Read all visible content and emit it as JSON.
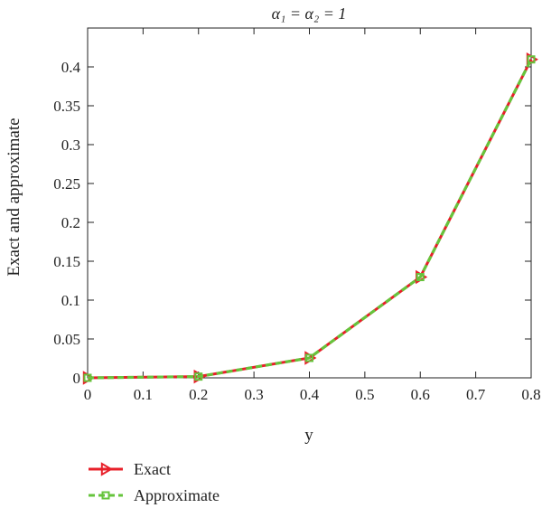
{
  "chart_data": {
    "type": "line",
    "title": "α₁ = α₂ = 1",
    "xlabel": "y",
    "ylabel": "Exact and approximate",
    "xlim": [
      0,
      0.8
    ],
    "ylim": [
      0,
      0.45
    ],
    "xticks": [
      0,
      0.1,
      0.2,
      0.3,
      0.4,
      0.5,
      0.6,
      0.7,
      0.8
    ],
    "xtick_labels": [
      "0",
      "0.1",
      "0.2",
      "0.3",
      "0.4",
      "0.5",
      "0.6",
      "0.7",
      "0.8"
    ],
    "yticks": [
      0,
      0.05,
      0.1,
      0.15,
      0.2,
      0.25,
      0.3,
      0.35,
      0.4
    ],
    "ytick_labels": [
      "0",
      "0.05",
      "0.1",
      "0.15",
      "0.2",
      "0.25",
      "0.3",
      "0.35",
      "0.4"
    ],
    "grid": false,
    "legend_position": "bottom-left, below plot",
    "x": [
      0,
      0.2,
      0.4,
      0.6,
      0.8
    ],
    "series": [
      {
        "name": "Exact",
        "values": [
          0,
          0.0016,
          0.0256,
          0.1296,
          0.4096
        ],
        "color": "#e8202a",
        "marker": "triangle-right",
        "linestyle": "solid"
      },
      {
        "name": "Approximate",
        "values": [
          0,
          0.0016,
          0.0256,
          0.1296,
          0.4096
        ],
        "color": "#66c43c",
        "marker": "square",
        "linestyle": "dashed"
      }
    ]
  }
}
